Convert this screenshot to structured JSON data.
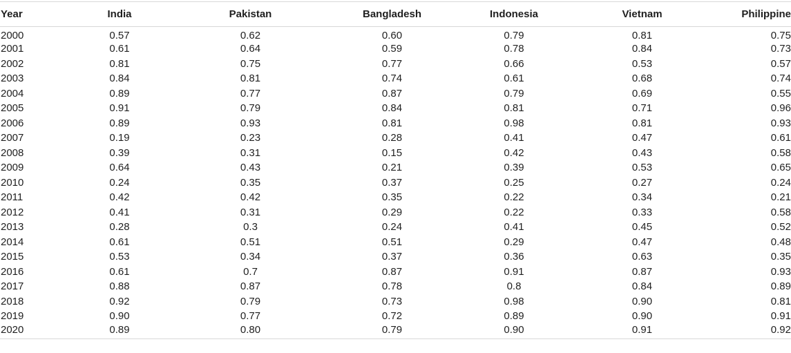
{
  "table": {
    "headers": [
      "Year",
      "India",
      "Pakistan",
      "Bangladesh",
      "Indonesia",
      "Vietnam",
      "Philippine"
    ],
    "rows": [
      [
        "2000",
        "0.57",
        "0.62",
        "0.60",
        "0.79",
        "0.81",
        "0.75"
      ],
      [
        "2001",
        "0.61",
        "0.64",
        "0.59",
        "0.78",
        "0.84",
        "0.73"
      ],
      [
        "2002",
        "0.81",
        "0.75",
        "0.77",
        "0.66",
        "0.53",
        "0.57"
      ],
      [
        "2003",
        "0.84",
        "0.81",
        "0.74",
        "0.61",
        "0.68",
        "0.74"
      ],
      [
        "2004",
        "0.89",
        "0.77",
        "0.87",
        "0.79",
        "0.69",
        "0.55"
      ],
      [
        "2005",
        "0.91",
        "0.79",
        "0.84",
        "0.81",
        "0.71",
        "0.96"
      ],
      [
        "2006",
        "0.89",
        "0.93",
        "0.81",
        "0.98",
        "0.81",
        "0.93"
      ],
      [
        "2007",
        "0.19",
        "0.23",
        "0.28",
        "0.41",
        "0.47",
        "0.61"
      ],
      [
        "2008",
        "0.39",
        "0.31",
        "0.15",
        "0.42",
        "0.43",
        "0.58"
      ],
      [
        "2009",
        "0.64",
        "0.43",
        "0.21",
        "0.39",
        "0.53",
        "0.65"
      ],
      [
        "2010",
        "0.24",
        "0.35",
        "0.37",
        "0.25",
        "0.27",
        "0.24"
      ],
      [
        "2011",
        "0.42",
        "0.42",
        "0.35",
        "0.22",
        "0.34",
        "0.21"
      ],
      [
        "2012",
        "0.41",
        "0.31",
        "0.29",
        "0.22",
        "0.33",
        "0.58"
      ],
      [
        "2013",
        "0.28",
        "0.3",
        "0.24",
        "0.41",
        "0.45",
        "0.52"
      ],
      [
        "2014",
        "0.61",
        "0.51",
        "0.51",
        "0.29",
        "0.47",
        "0.48"
      ],
      [
        "2015",
        "0.53",
        "0.34",
        "0.37",
        "0.36",
        "0.63",
        "0.35"
      ],
      [
        "2016",
        "0.61",
        "0.7",
        "0.87",
        "0.91",
        "0.87",
        "0.93"
      ],
      [
        "2017",
        "0.88",
        "0.87",
        "0.78",
        "0.8",
        "0.84",
        "0.89"
      ],
      [
        "2018",
        "0.92",
        "0.79",
        "0.73",
        "0.98",
        "0.90",
        "0.81"
      ],
      [
        "2019",
        "0.90",
        "0.77",
        "0.72",
        "0.89",
        "0.90",
        "0.91"
      ],
      [
        "2020",
        "0.89",
        "0.80",
        "0.79",
        "0.90",
        "0.91",
        "0.92"
      ]
    ]
  }
}
